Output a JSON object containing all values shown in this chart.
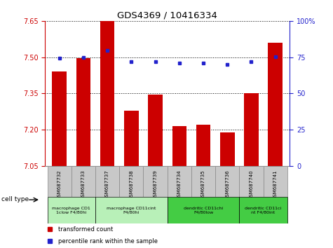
{
  "title": "GDS4369 / 10416334",
  "samples": [
    "GSM687732",
    "GSM687733",
    "GSM687737",
    "GSM687738",
    "GSM687739",
    "GSM687734",
    "GSM687735",
    "GSM687736",
    "GSM687740",
    "GSM687741"
  ],
  "transformed_count": [
    7.44,
    7.497,
    7.655,
    7.28,
    7.345,
    7.215,
    7.222,
    7.19,
    7.35,
    7.56
  ],
  "percentile_rank": [
    74.5,
    75.0,
    79.5,
    72.0,
    72.0,
    70.8,
    70.8,
    70.2,
    71.8,
    75.5
  ],
  "ylim_left": [
    7.05,
    7.65
  ],
  "ylim_right": [
    0,
    100
  ],
  "yticks_left": [
    7.05,
    7.2,
    7.35,
    7.5,
    7.65
  ],
  "yticks_right": [
    0,
    25,
    50,
    75,
    100
  ],
  "bar_color": "#cc0000",
  "dot_color": "#2222cc",
  "grid_color": "#000000",
  "cell_groups": [
    {
      "label": "macrophage CD1\n1clow F4/80hi",
      "start": 0,
      "end": 2,
      "color": "#b8f0b8"
    },
    {
      "label": "macrophage CD11cint\nF4/80hi",
      "start": 2,
      "end": 5,
      "color": "#b8f0b8"
    },
    {
      "label": "dendritic CD11chi\nF4/80low",
      "start": 5,
      "end": 8,
      "color": "#44cc44"
    },
    {
      "label": "dendritic CD11ci\nnt F4/80int",
      "start": 8,
      "end": 10,
      "color": "#44cc44"
    }
  ],
  "background_color": "#ffffff",
  "plot_bg": "#ffffff",
  "left_axis_color": "#cc0000",
  "right_axis_color": "#2222cc",
  "sample_box_color": "#c8c8c8",
  "legend_red_label": "transformed count",
  "legend_blue_label": "percentile rank within the sample"
}
